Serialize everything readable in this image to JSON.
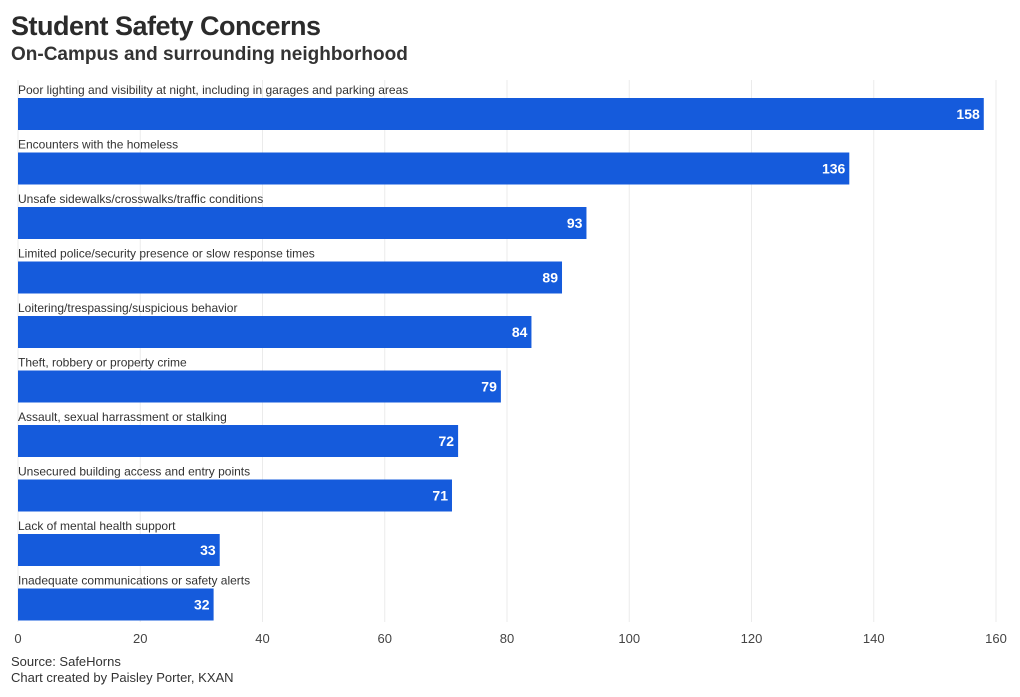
{
  "title": "Student Safety Concerns",
  "subtitle": "On-Campus and surrounding neighborhood",
  "source": "Source: SafeHorns",
  "credit": "Chart created by Paisley Porter, KXAN",
  "bar_color": "#155bdc",
  "chart_data": {
    "type": "bar",
    "orientation": "horizontal",
    "title": "Student Safety Concerns",
    "subtitle": "On-Campus and surrounding neighborhood",
    "categories": [
      "Poor lighting and visibility at night, including in garages and parking areas",
      "Encounters with the homeless",
      "Unsafe sidewalks/crosswalks/traffic conditions",
      "Limited police/security presence or slow response times",
      "Loitering/trespassing/suspicious behavior",
      "Theft, robbery or property crime",
      "Assault, sexual harrassment or stalking",
      "Unsecured building access and entry points",
      "Lack of mental health support",
      "Inadequate communications or safety alerts"
    ],
    "values": [
      158,
      136,
      93,
      89,
      84,
      79,
      72,
      71,
      33,
      32
    ],
    "xlim": [
      0,
      160
    ],
    "xticks": [
      0,
      20,
      40,
      60,
      80,
      100,
      120,
      140,
      160
    ],
    "grid": true,
    "legend": "none"
  }
}
